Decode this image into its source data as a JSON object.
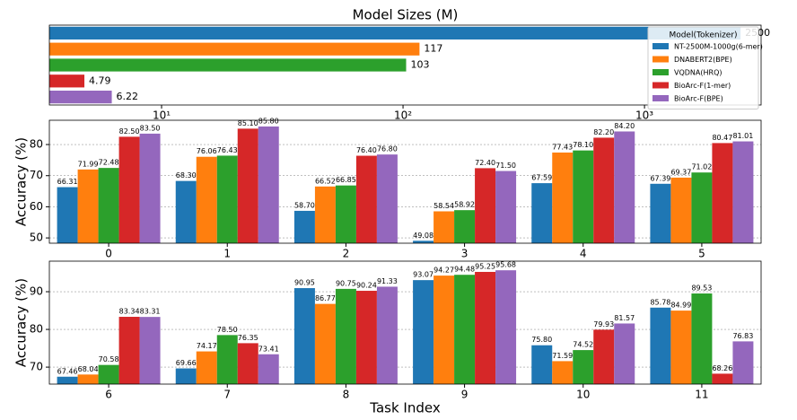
{
  "chart_data": [
    {
      "type": "bar",
      "horizontal": true,
      "title": "Model Sizes (M)",
      "xscale": "log",
      "xlim": [
        3.43,
        3040
      ],
      "xticks": [
        {
          "value": 10,
          "label": "10¹"
        },
        {
          "value": 100,
          "label": "10²"
        },
        {
          "value": 1000,
          "label": "10³"
        }
      ],
      "legend": "upper right",
      "legend_title": "Model(Tokenizer)",
      "series": [
        {
          "name": "NT-2500M-1000g(6-mer)",
          "color": "#1f77b4",
          "values": [
            2500
          ]
        },
        {
          "name": "DNABERT2(BPE)",
          "color": "#ff7f0e",
          "values": [
            117
          ]
        },
        {
          "name": "VQDNA(HRQ)",
          "color": "#2ca02c",
          "values": [
            103
          ]
        },
        {
          "name": "BioArc-F(1-mer)",
          "color": "#d62728",
          "values": [
            4.79
          ]
        },
        {
          "name": "BioArc-F(BPE)",
          "color": "#9467bd",
          "values": [
            6.22
          ]
        }
      ]
    },
    {
      "type": "bar",
      "ylabel": "Accuracy (%)",
      "ylim": [
        48.3,
        87.8
      ],
      "yticks": [
        50,
        60,
        70,
        80
      ],
      "grid": true,
      "categories": [
        "0",
        "1",
        "2",
        "3",
        "4",
        "5"
      ],
      "series": [
        {
          "color": "#1f77b4",
          "values": [
            66.31,
            68.3,
            58.7,
            49.08,
            67.59,
            67.39
          ],
          "value_labels": [
            "66.31",
            "68.30",
            "58.70",
            "49.08",
            "67.59",
            "67.39"
          ]
        },
        {
          "color": "#ff7f0e",
          "values": [
            71.99,
            76.06,
            66.52,
            58.54,
            77.43,
            69.37
          ],
          "value_labels": [
            "71.99",
            "76.06",
            "66.52",
            "58.54",
            "77.43",
            "69.37"
          ]
        },
        {
          "color": "#2ca02c",
          "values": [
            72.48,
            76.43,
            66.85,
            58.92,
            78.1,
            71.02
          ],
          "value_labels": [
            "72.48",
            "76.43",
            "66.85",
            "58.92",
            "78.10",
            "71.02"
          ]
        },
        {
          "color": "#d62728",
          "values": [
            82.5,
            85.1,
            76.4,
            72.4,
            82.2,
            80.47
          ],
          "value_labels": [
            "82.50",
            "85.10",
            "76.40",
            "72.40",
            "82.20",
            "80.47"
          ]
        },
        {
          "color": "#9467bd",
          "values": [
            83.5,
            85.8,
            76.8,
            71.5,
            84.2,
            81.01
          ],
          "value_labels": [
            "83.50",
            "85.80",
            "76.80",
            "71.50",
            "84.20",
            "81.01"
          ]
        }
      ]
    },
    {
      "type": "bar",
      "ylabel": "Accuracy (%)",
      "xlabel": "Task Index",
      "ylim": [
        65.5,
        98.1
      ],
      "yticks": [
        70,
        80,
        90
      ],
      "grid": true,
      "categories": [
        "6",
        "7",
        "8",
        "9",
        "10",
        "11"
      ],
      "series": [
        {
          "color": "#1f77b4",
          "values": [
            67.46,
            69.66,
            90.95,
            93.07,
            75.8,
            85.78
          ],
          "value_labels": [
            "67.46",
            "69.66",
            "90.95",
            "93.07",
            "75.80",
            "85.78"
          ]
        },
        {
          "color": "#ff7f0e",
          "values": [
            68.04,
            74.17,
            86.77,
            94.27,
            71.59,
            84.99
          ],
          "value_labels": [
            "68.04",
            "74.17",
            "86.77",
            "94.27",
            "71.59",
            "84.99"
          ]
        },
        {
          "color": "#2ca02c",
          "values": [
            70.58,
            78.5,
            90.75,
            94.48,
            74.52,
            89.53
          ],
          "value_labels": [
            "70.58",
            "78.50",
            "90.75",
            "94.48",
            "74.52",
            "89.53"
          ]
        },
        {
          "color": "#d62728",
          "values": [
            83.34,
            76.35,
            90.24,
            95.25,
            79.93,
            68.26
          ],
          "value_labels": [
            "83.34",
            "76.35",
            "90.24",
            "95.25",
            "79.93",
            "68.26"
          ]
        },
        {
          "color": "#9467bd",
          "values": [
            83.31,
            73.41,
            91.33,
            95.68,
            81.57,
            76.83
          ],
          "value_labels": [
            "83.31",
            "73.41",
            "91.33",
            "95.68",
            "81.57",
            "76.83"
          ]
        }
      ]
    }
  ]
}
